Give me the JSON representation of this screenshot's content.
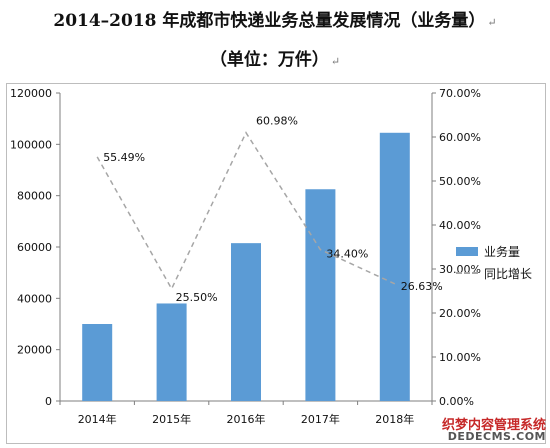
{
  "title": "2014–2018 年成都市快递业务总量发展情况（业务量）",
  "subtitle": "（单位：万件）",
  "watermark": {
    "line1": "织梦内容管理系统",
    "line2": "DEDECMS.COM"
  },
  "chart_data": {
    "type": "bar",
    "categories": [
      "2014年",
      "2015年",
      "2016年",
      "2017年",
      "2018年"
    ],
    "series": [
      {
        "name": "业务量",
        "type": "bar",
        "axis": "left",
        "color": "#5b9bd5",
        "values": [
          30000,
          38000,
          61500,
          82500,
          104500
        ]
      },
      {
        "name": "同比增长",
        "type": "line",
        "axis": "right",
        "color": "#a6a6a6",
        "values": [
          55.49,
          25.5,
          60.98,
          34.4,
          26.63
        ],
        "labels": [
          "55.49%",
          "25.50%",
          "60.98%",
          "34.40%",
          "26.63%"
        ]
      }
    ],
    "y_left": {
      "ylim": [
        0,
        120000
      ],
      "ticks": [
        0,
        20000,
        40000,
        60000,
        80000,
        100000,
        120000
      ],
      "tick_labels": [
        "0",
        "20000",
        "40000",
        "60000",
        "80000",
        "100000",
        "120000"
      ]
    },
    "y_right": {
      "ylim": [
        0,
        70
      ],
      "ticks": [
        0,
        10,
        20,
        30,
        40,
        50,
        60,
        70
      ],
      "tick_labels": [
        "0.00%",
        "10.00%",
        "20.00%",
        "30.00%",
        "40.00%",
        "50.00%",
        "60.00%",
        "70.00%"
      ]
    },
    "legend": "right",
    "grid": false
  }
}
